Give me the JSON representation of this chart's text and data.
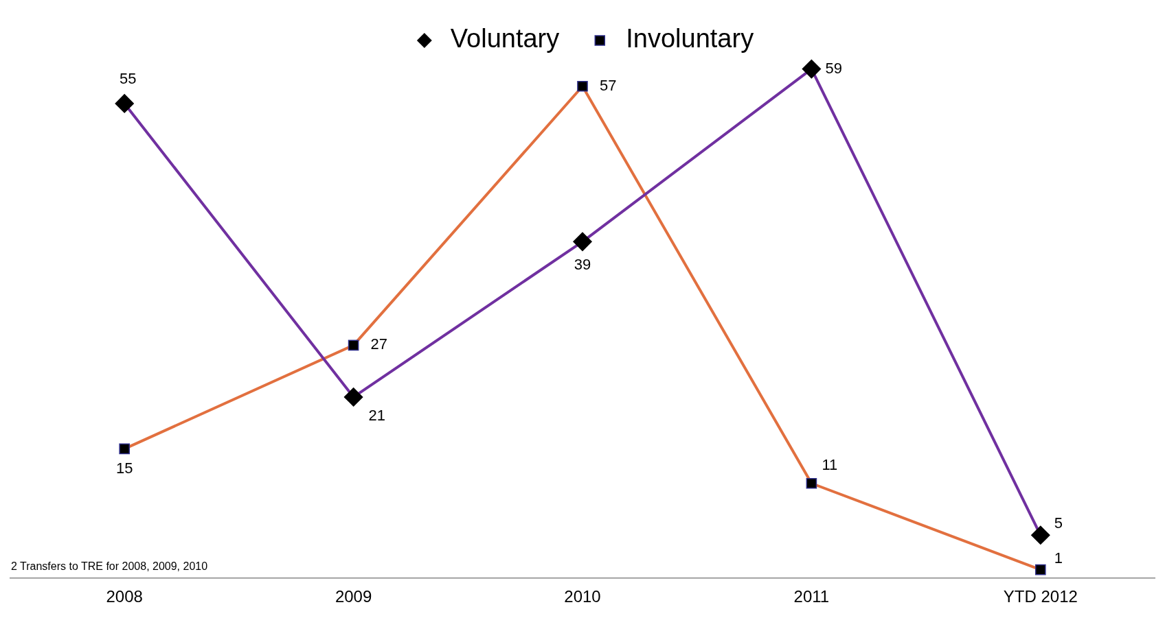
{
  "chart_data": {
    "type": "line",
    "categories": [
      "2008",
      "2009",
      "2010",
      "2011",
      "YTD 2012"
    ],
    "series": [
      {
        "name": "Voluntary",
        "color": "#7030a0",
        "marker": "diamond",
        "values": [
          55,
          21,
          39,
          59,
          5
        ]
      },
      {
        "name": "Involuntary",
        "color": "#e2703f",
        "marker": "square",
        "values": [
          15,
          27,
          57,
          11,
          1
        ]
      }
    ],
    "tick_labels": "x",
    "grid": false,
    "legend": "top",
    "data_labels": true,
    "annotations": [
      "2 Transfers to TRE for 2008, 2009, 2010"
    ]
  }
}
